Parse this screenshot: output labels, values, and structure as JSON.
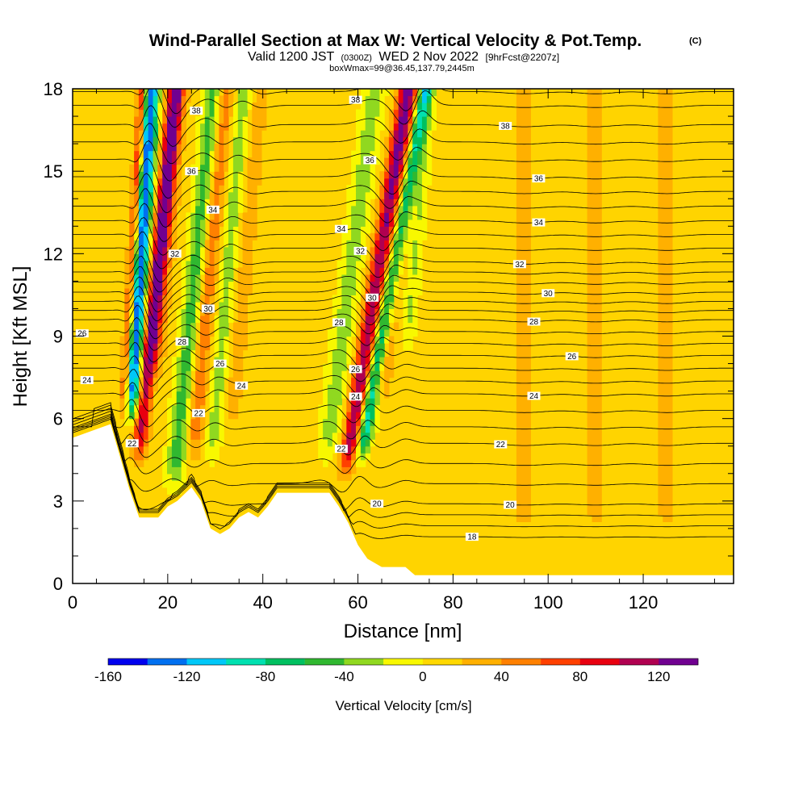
{
  "chart_data": {
    "type": "heatmap",
    "title": "Wind-Parallel Section at Max W: Vertical Velocity & Pot.Temp.",
    "title_badge": "(C)",
    "subtitle_parts": {
      "valid": "Valid 1200 JST",
      "zulu": "(0300Z)",
      "date": "WED 2 Nov 2022",
      "forecast": "[9hrFcst@2207z]"
    },
    "subtitle2": "boxWmax=99@36.45,137.79,2445m",
    "xlabel": "Distance [nm]",
    "ylabel": "Height [Kft MSL]",
    "xlim": [
      0,
      139
    ],
    "ylim": [
      0,
      18
    ],
    "x_ticks": [
      "0",
      "20",
      "40",
      "60",
      "80",
      "100",
      "120"
    ],
    "y_ticks": [
      "0",
      "3",
      "6",
      "9",
      "12",
      "15",
      "18"
    ],
    "colorbar": {
      "label": "Vertical Velocity [cm/s]",
      "range": [
        -160,
        140
      ],
      "tick_labels": [
        "-160",
        "-120",
        "-80",
        "-40",
        "0",
        "40",
        "80",
        "120"
      ],
      "colors": [
        "#0000ee",
        "#0070f0",
        "#00c8f8",
        "#00e0b0",
        "#00c060",
        "#30b830",
        "#90d820",
        "#f8f800",
        "#ffd800",
        "#ffb000",
        "#ff8000",
        "#ff4000",
        "#e80010",
        "#b00050",
        "#700090"
      ]
    },
    "terrain_profile": [
      {
        "x": 0,
        "h": 5.3
      },
      {
        "x": 8,
        "h": 5.8
      },
      {
        "x": 10,
        "h": 4.6
      },
      {
        "x": 12,
        "h": 3.4
      },
      {
        "x": 14,
        "h": 2.4
      },
      {
        "x": 18,
        "h": 2.4
      },
      {
        "x": 20,
        "h": 2.8
      },
      {
        "x": 22,
        "h": 3.0
      },
      {
        "x": 25,
        "h": 3.5
      },
      {
        "x": 27,
        "h": 3.0
      },
      {
        "x": 29,
        "h": 2.0
      },
      {
        "x": 31,
        "h": 1.8
      },
      {
        "x": 33,
        "h": 2.0
      },
      {
        "x": 35,
        "h": 2.4
      },
      {
        "x": 37,
        "h": 2.6
      },
      {
        "x": 39,
        "h": 2.4
      },
      {
        "x": 41,
        "h": 2.8
      },
      {
        "x": 43,
        "h": 3.3
      },
      {
        "x": 54,
        "h": 3.3
      },
      {
        "x": 56,
        "h": 2.8
      },
      {
        "x": 58,
        "h": 2.2
      },
      {
        "x": 60,
        "h": 1.4
      },
      {
        "x": 62,
        "h": 0.9
      },
      {
        "x": 65,
        "h": 0.6
      },
      {
        "x": 70,
        "h": 0.6
      },
      {
        "x": 72,
        "h": 0.3
      },
      {
        "x": 139,
        "h": 0.3
      }
    ],
    "velocity_bands": [
      {
        "x": 12,
        "v": -150,
        "h0": 5.5,
        "h1": 18,
        "tilt": 2.2,
        "width": 1.6
      },
      {
        "x": 13.5,
        "v": 100,
        "h0": 4.0,
        "h1": 18,
        "tilt": 3.5,
        "width": 1.5
      },
      {
        "x": 10.5,
        "v": 90,
        "h0": 5.5,
        "h1": 18,
        "tilt": 2.0,
        "width": 1.0
      },
      {
        "x": 16.5,
        "v": 50,
        "h0": 7.0,
        "h1": 18,
        "tilt": 3.0,
        "width": 2.0
      },
      {
        "x": 21,
        "v": -60,
        "h0": 3.0,
        "h1": 18,
        "tilt": 3.5,
        "width": 2.0
      },
      {
        "x": 25,
        "v": 50,
        "h0": 4.0,
        "h1": 18,
        "tilt": 3.0,
        "width": 1.8
      },
      {
        "x": 29,
        "v": -40,
        "h0": 4.0,
        "h1": 18,
        "tilt": 3.0,
        "width": 1.6
      },
      {
        "x": 33,
        "v": 20,
        "h0": 5.0,
        "h1": 18,
        "tilt": 3.0,
        "width": 2.0
      },
      {
        "x": 53,
        "v": -40,
        "h0": 4.0,
        "h1": 18,
        "tilt": 4.5,
        "width": 2.2
      },
      {
        "x": 57,
        "v": 110,
        "h0": 3.5,
        "h1": 18,
        "tilt": 5.5,
        "width": 1.8
      },
      {
        "x": 60,
        "v": -110,
        "h0": 4.0,
        "h1": 18,
        "tilt": 6.0,
        "width": 1.5
      },
      {
        "x": 64,
        "v": 40,
        "h0": 6.0,
        "h1": 18,
        "tilt": 4.0,
        "width": 2.0
      },
      {
        "x": 70,
        "v": -30,
        "h0": 8.0,
        "h1": 18,
        "tilt": 3.0,
        "width": 1.5
      },
      {
        "x": 95,
        "v": 15,
        "h0": 1.0,
        "h1": 18,
        "tilt": 0.0,
        "width": 3.5
      },
      {
        "x": 110,
        "v": 15,
        "h0": 1.0,
        "h1": 18,
        "tilt": 0.0,
        "width": 3.0
      },
      {
        "x": 125,
        "v": 15,
        "h0": 1.0,
        "h1": 18,
        "tilt": 0.0,
        "width": 3.0
      }
    ],
    "theta_contours": [
      {
        "value": "18",
        "label_x": 84,
        "base_h": 1.7
      },
      {
        "value": "20",
        "label_x": 92,
        "base_h": 2.9
      },
      {
        "value": "22",
        "label_x": 90,
        "base_h": 5.1
      },
      {
        "value": "24",
        "label_x": 97,
        "base_h": 6.9
      },
      {
        "value": "26",
        "label_x": 105,
        "base_h": 8.3
      },
      {
        "value": "28",
        "label_x": 97,
        "base_h": 9.6
      },
      {
        "value": "30",
        "label_x": 100,
        "base_h": 10.6
      },
      {
        "value": "32",
        "label_x": 94,
        "base_h": 11.7
      },
      {
        "value": "34",
        "label_x": 98,
        "base_h": 13.2
      },
      {
        "value": "36",
        "label_x": 98,
        "base_h": 14.8
      },
      {
        "value": "38",
        "label_x": 91,
        "base_h": 16.7
      }
    ],
    "extra_labels": [
      {
        "text": "22",
        "x": 12.5,
        "h": 5.1
      },
      {
        "text": "22",
        "x": 26.5,
        "h": 6.2
      },
      {
        "text": "24",
        "x": 35.5,
        "h": 7.2
      },
      {
        "text": "26",
        "x": 31,
        "h": 8.0
      },
      {
        "text": "28",
        "x": 23,
        "h": 8.8
      },
      {
        "text": "30",
        "x": 28.5,
        "h": 10.0
      },
      {
        "text": "32",
        "x": 21.5,
        "h": 12.0
      },
      {
        "text": "34",
        "x": 29.5,
        "h": 13.6
      },
      {
        "text": "36",
        "x": 25,
        "h": 15.0
      },
      {
        "text": "38",
        "x": 26,
        "h": 17.2
      },
      {
        "text": "26",
        "x": 2,
        "h": 9.1
      },
      {
        "text": "24",
        "x": 3,
        "h": 7.4
      },
      {
        "text": "22",
        "x": 56.5,
        "h": 4.9
      },
      {
        "text": "24",
        "x": 59.5,
        "h": 6.8
      },
      {
        "text": "26",
        "x": 59.5,
        "h": 7.8
      },
      {
        "text": "28",
        "x": 56,
        "h": 9.5
      },
      {
        "text": "30",
        "x": 63,
        "h": 10.4
      },
      {
        "text": "32",
        "x": 60.5,
        "h": 12.1
      },
      {
        "text": "34",
        "x": 56.5,
        "h": 12.9
      },
      {
        "text": "36",
        "x": 62.5,
        "h": 15.4
      },
      {
        "text": "38",
        "x": 59.5,
        "h": 17.6
      },
      {
        "text": "20",
        "x": 64,
        "h": 2.9
      }
    ]
  }
}
